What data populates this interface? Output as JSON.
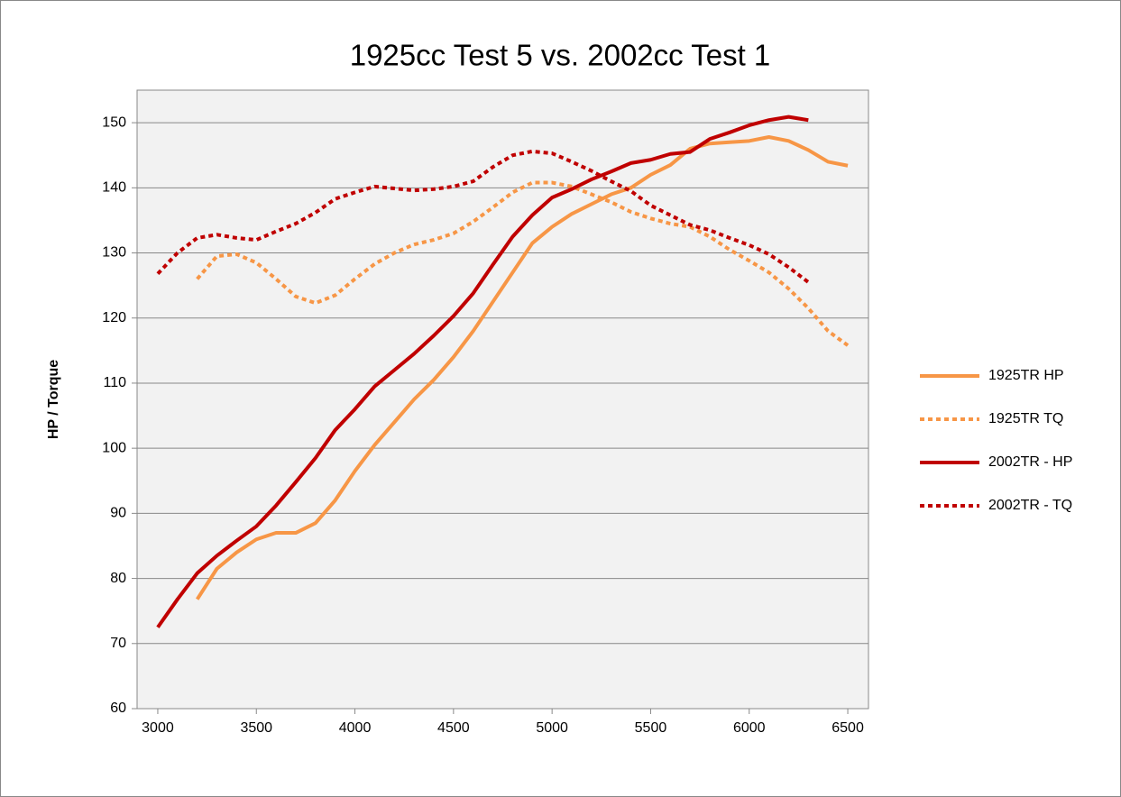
{
  "chart_data": {
    "type": "line",
    "title": "1925cc Test 5 vs. 2002cc Test 1",
    "y_label": "HP / Torque",
    "x": [
      3000,
      3100,
      3200,
      3300,
      3400,
      3500,
      3600,
      3700,
      3800,
      3900,
      4000,
      4100,
      4200,
      4300,
      4400,
      4500,
      4600,
      4700,
      4800,
      4900,
      5000,
      5100,
      5200,
      5300,
      5400,
      5500,
      5600,
      5700,
      5800,
      5900,
      6000,
      6100,
      6200,
      6300,
      6400,
      6500
    ],
    "xlim": [
      2895,
      6605
    ],
    "xticks": [
      3000,
      3500,
      4000,
      4500,
      5000,
      5500,
      6000,
      6500
    ],
    "ylim": [
      60,
      155
    ],
    "yticks": [
      60,
      70,
      80,
      90,
      100,
      110,
      120,
      130,
      140,
      150
    ],
    "grid": true,
    "legend": "right",
    "series": [
      {
        "name": "1925TR HP",
        "color": "#f79646",
        "dash": "solid",
        "values": [
          null,
          null,
          76.8,
          81.5,
          84,
          86,
          87,
          87,
          88.5,
          92,
          96.5,
          100.5,
          104,
          107.5,
          110.5,
          114,
          118,
          122.5,
          127,
          131.5,
          134,
          136,
          137.5,
          139,
          140,
          142,
          143.5,
          146,
          146.8,
          147,
          147.2,
          147.8,
          147.2,
          145.8,
          144,
          143.4
        ]
      },
      {
        "name": "1925TR TQ",
        "color": "#f79646",
        "dash": "dotted",
        "values": [
          null,
          null,
          126,
          129.5,
          129.8,
          128.5,
          126,
          123.3,
          122.3,
          123.5,
          126,
          128.3,
          130,
          131.3,
          132,
          133,
          134.8,
          137,
          139.3,
          140.8,
          140.8,
          140.2,
          139,
          137.8,
          136.3,
          135.3,
          134.5,
          134,
          132.5,
          130.5,
          128.8,
          127,
          124.5,
          121.5,
          118,
          115.8
        ]
      },
      {
        "name": "2002TR - HP",
        "color": "#c00000",
        "dash": "solid",
        "values": [
          72.5,
          76.8,
          80.8,
          83.5,
          85.8,
          88,
          91.2,
          94.8,
          98.5,
          102.8,
          106,
          109.5,
          112,
          114.5,
          117.3,
          120.3,
          123.8,
          128.2,
          132.5,
          135.8,
          138.5,
          139.8,
          141.3,
          142.5,
          143.8,
          144.3,
          145.2,
          145.5,
          147.5,
          148.5,
          149.6,
          150.4,
          150.9,
          150.4,
          null,
          null
        ]
      },
      {
        "name": "2002TR - TQ",
        "color": "#c00000",
        "dash": "dotted",
        "values": [
          126.8,
          130,
          132.3,
          132.8,
          132.3,
          132,
          133.3,
          134.5,
          136.2,
          138.3,
          139.3,
          140.2,
          139.9,
          139.6,
          139.8,
          140.2,
          141,
          143.2,
          145,
          145.6,
          145.3,
          144,
          142.6,
          141,
          139.5,
          137.3,
          135.8,
          134.3,
          133.5,
          132.3,
          131.2,
          129.8,
          127.8,
          125.5,
          null,
          null
        ]
      }
    ]
  }
}
